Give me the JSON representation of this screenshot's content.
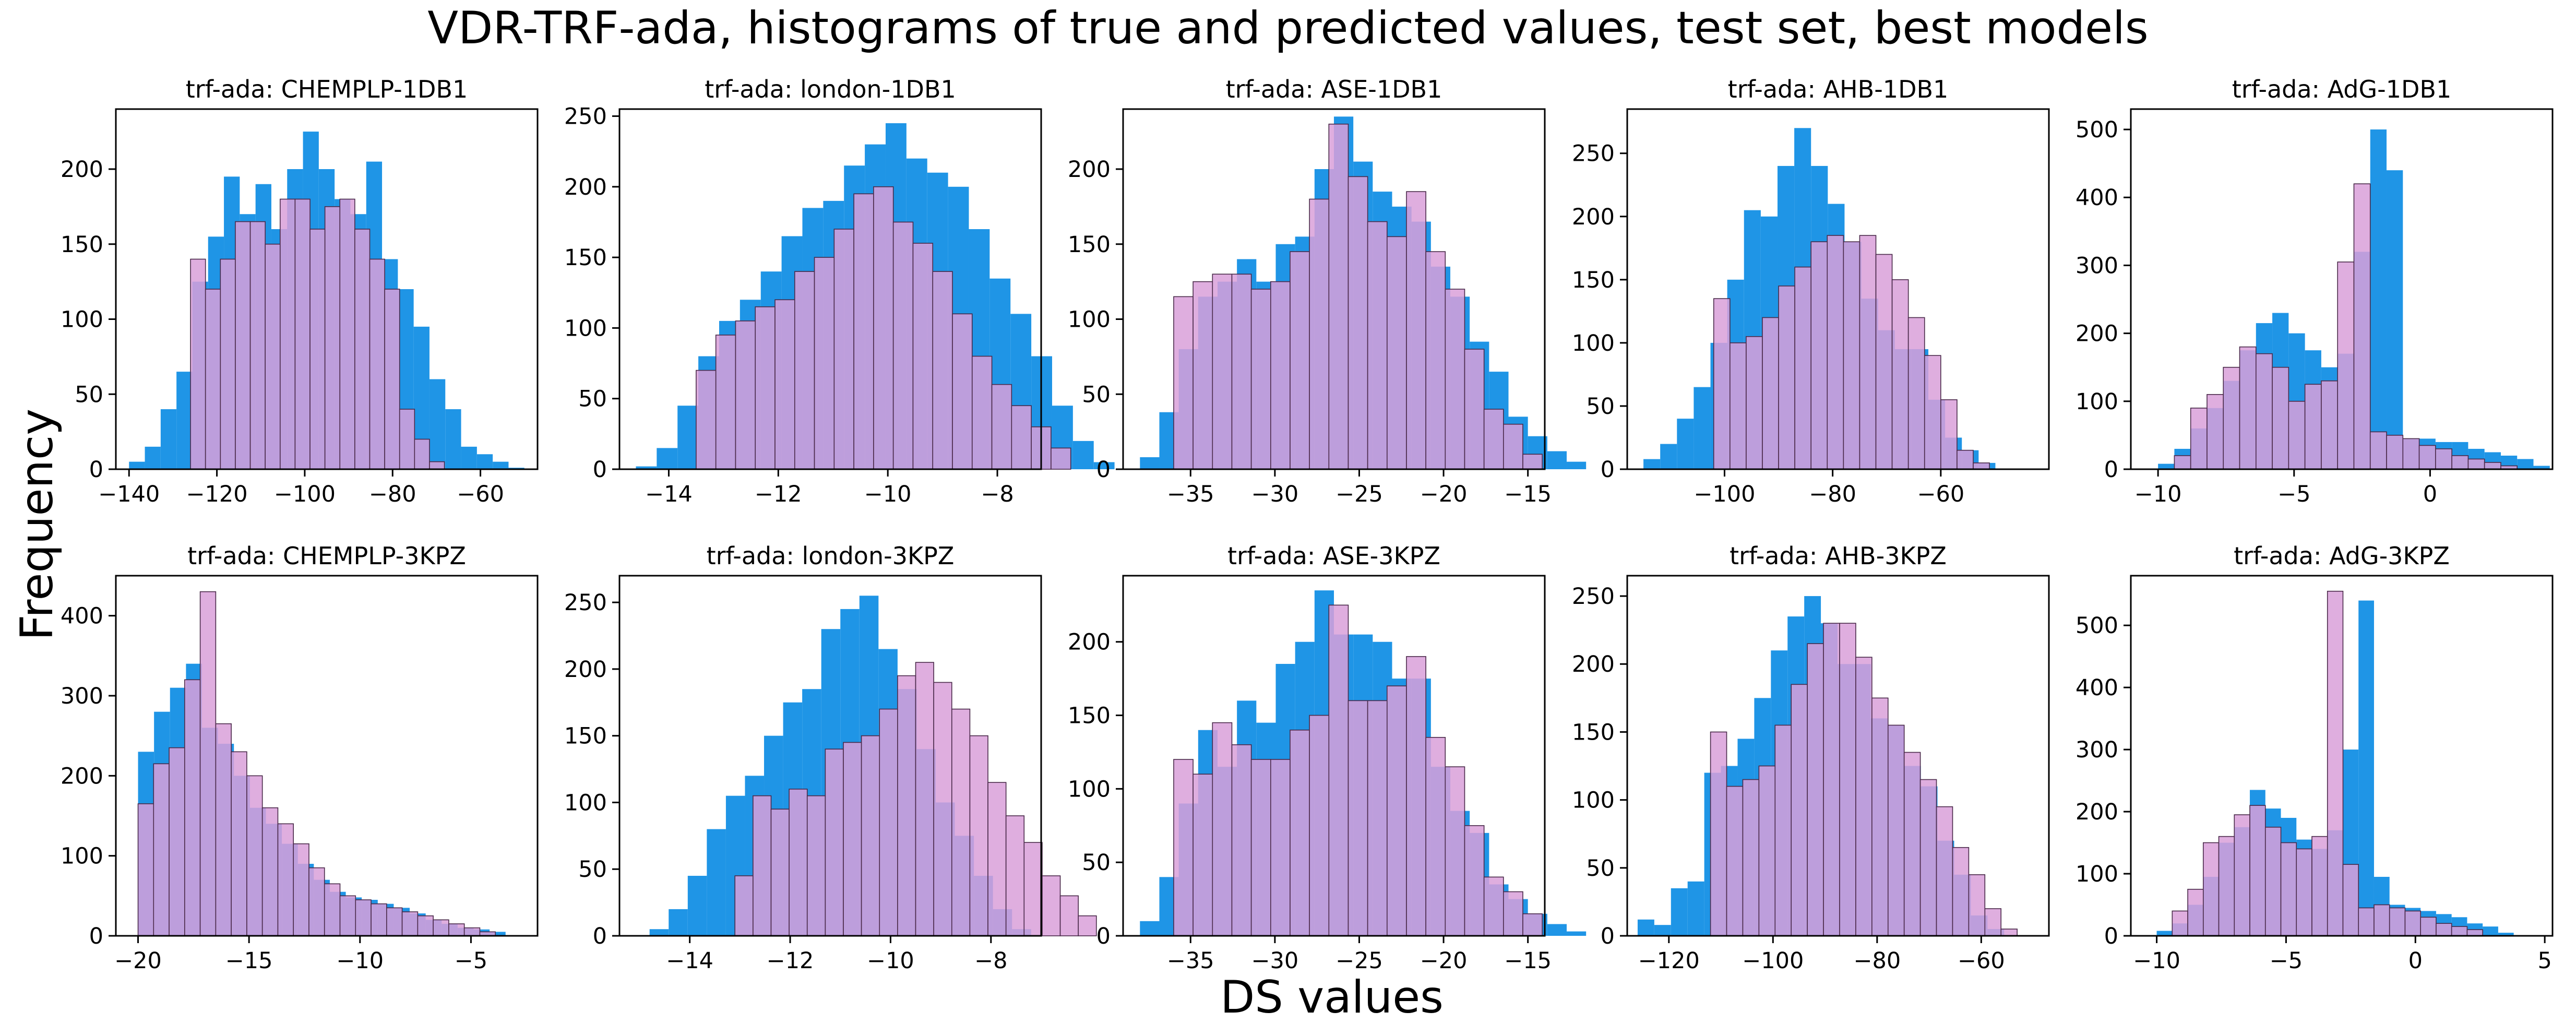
{
  "title": "VDR-TRF-ada, histograms of true and predicted values, test set, best models",
  "ylabel": "Frequency",
  "xlabel": "DS values",
  "colors": {
    "true": "#1f95e6",
    "pred": "#d9a0d9",
    "pred_edge": "#4a2a4a"
  },
  "chart_data": [
    {
      "type": "bar",
      "title": "trf-ada: CHEMPLP-1DB1",
      "xlim": [
        -143,
        -47
      ],
      "ylim": [
        0,
        240
      ],
      "xticks": [
        -140,
        -120,
        -100,
        -80,
        -60
      ],
      "yticks": [
        0,
        50,
        100,
        150,
        200
      ],
      "series": [
        {
          "x0": -140,
          "width": 3.6,
          "values": [
            5,
            15,
            40,
            65,
            125,
            155,
            195,
            170,
            190,
            160,
            200,
            225,
            200,
            180,
            170,
            205,
            140,
            120,
            95,
            60,
            40,
            15,
            10,
            5,
            1
          ]
        },
        {
          "x0": -126,
          "width": 3.4,
          "values": [
            140,
            120,
            140,
            165,
            165,
            150,
            180,
            180,
            160,
            175,
            180,
            160,
            140,
            120,
            40,
            20,
            5
          ]
        }
      ]
    },
    {
      "type": "bar",
      "title": "trf-ada: london-1DB1",
      "xlim": [
        -14.9,
        -7.2
      ],
      "ylim": [
        0,
        255
      ],
      "xticks": [
        -14,
        -12,
        -10,
        -8
      ],
      "yticks": [
        0,
        50,
        100,
        150,
        200,
        250
      ],
      "series": [
        {
          "x0": -14.6,
          "width": 0.38,
          "values": [
            2,
            15,
            45,
            80,
            105,
            120,
            140,
            165,
            185,
            190,
            215,
            230,
            245,
            220,
            210,
            200,
            170,
            135,
            110,
            80,
            45,
            20,
            5
          ]
        },
        {
          "x0": -13.5,
          "width": 0.36,
          "values": [
            70,
            95,
            105,
            115,
            120,
            140,
            150,
            170,
            195,
            200,
            175,
            160,
            140,
            110,
            80,
            60,
            45,
            30,
            15
          ]
        }
      ]
    },
    {
      "type": "bar",
      "title": "trf-ada: ASE-1DB1",
      "xlim": [
        -39,
        -14
      ],
      "ylim": [
        0,
        240
      ],
      "xticks": [
        -35,
        -30,
        -25,
        -20,
        -15
      ],
      "yticks": [
        0,
        50,
        100,
        150,
        200
      ],
      "series": [
        {
          "x0": -38,
          "width": 1.15,
          "values": [
            8,
            38,
            80,
            115,
            125,
            140,
            125,
            150,
            155,
            200,
            235,
            205,
            185,
            175,
            165,
            135,
            115,
            85,
            65,
            35,
            22,
            12,
            5
          ]
        },
        {
          "x0": -36,
          "width": 1.15,
          "values": [
            115,
            125,
            130,
            130,
            120,
            125,
            145,
            180,
            230,
            195,
            165,
            155,
            185,
            145,
            120,
            80,
            40,
            30,
            10
          ]
        }
      ]
    },
    {
      "type": "bar",
      "title": "trf-ada: AHB-1DB1",
      "xlim": [
        -118,
        -40
      ],
      "ylim": [
        0,
        285
      ],
      "xticks": [
        -100,
        -80,
        -60
      ],
      "yticks": [
        0,
        50,
        100,
        150,
        200,
        250
      ],
      "series": [
        {
          "x0": -115,
          "width": 3.1,
          "values": [
            8,
            20,
            40,
            65,
            100,
            150,
            205,
            200,
            240,
            270,
            240,
            210,
            180,
            135,
            110,
            95,
            95,
            55,
            25,
            15,
            5
          ]
        },
        {
          "x0": -102,
          "width": 3.0,
          "values": [
            135,
            100,
            105,
            120,
            145,
            160,
            180,
            185,
            180,
            185,
            170,
            150,
            120,
            90,
            55,
            15,
            5
          ]
        }
      ]
    },
    {
      "type": "bar",
      "title": "trf-ada: AdG-1DB1",
      "xlim": [
        -11,
        4.5
      ],
      "ylim": [
        0,
        530
      ],
      "xticks": [
        -10,
        -5,
        0
      ],
      "yticks": [
        0,
        100,
        200,
        300,
        400,
        500
      ],
      "series": [
        {
          "x0": -10,
          "width": 0.6,
          "values": [
            8,
            30,
            60,
            90,
            130,
            175,
            215,
            230,
            200,
            175,
            150,
            170,
            320,
            500,
            440,
            45,
            45,
            40,
            40,
            30,
            25,
            20,
            15,
            5
          ]
        },
        {
          "x0": -9.4,
          "width": 0.6,
          "values": [
            20,
            90,
            110,
            150,
            180,
            170,
            150,
            100,
            125,
            130,
            305,
            420,
            55,
            50,
            45,
            35,
            30,
            20,
            15,
            10,
            5
          ]
        }
      ]
    },
    {
      "type": "bar",
      "title": "trf-ada: CHEMPLP-3KPZ",
      "xlim": [
        -21,
        -2
      ],
      "ylim": [
        0,
        450
      ],
      "xticks": [
        -20,
        -15,
        -10,
        -5
      ],
      "yticks": [
        0,
        100,
        200,
        300,
        400
      ],
      "series": [
        {
          "x0": -20,
          "width": 0.72,
          "values": [
            230,
            280,
            310,
            340,
            260,
            240,
            200,
            160,
            140,
            115,
            90,
            70,
            55,
            48,
            45,
            40,
            35,
            28,
            20,
            15,
            10,
            8,
            5
          ]
        },
        {
          "x0": -20,
          "width": 0.7,
          "values": [
            165,
            215,
            235,
            320,
            430,
            265,
            230,
            200,
            160,
            140,
            115,
            85,
            65,
            50,
            45,
            40,
            35,
            30,
            25,
            20,
            15,
            10,
            5
          ]
        }
      ]
    },
    {
      "type": "bar",
      "title": "trf-ada: london-3KPZ",
      "xlim": [
        -15.4,
        -7
      ],
      "ylim": [
        0,
        270
      ],
      "xticks": [
        -14,
        -12,
        -10,
        -8
      ],
      "yticks": [
        0,
        50,
        100,
        150,
        200,
        250
      ],
      "series": [
        {
          "x0": -14.8,
          "width": 0.38,
          "values": [
            5,
            20,
            45,
            80,
            105,
            120,
            150,
            175,
            185,
            230,
            245,
            255,
            215,
            185,
            140,
            100,
            75,
            45,
            20,
            5
          ]
        },
        {
          "x0": -13.1,
          "width": 0.36,
          "values": [
            45,
            105,
            95,
            110,
            105,
            140,
            145,
            150,
            170,
            195,
            205,
            190,
            170,
            150,
            115,
            90,
            70,
            45,
            30,
            15
          ]
        }
      ]
    },
    {
      "type": "bar",
      "title": "trf-ada: ASE-3KPZ",
      "xlim": [
        -39,
        -14
      ],
      "ylim": [
        0,
        245
      ],
      "xticks": [
        -35,
        -30,
        -25,
        -20,
        -15
      ],
      "yticks": [
        0,
        50,
        100,
        150,
        200
      ],
      "series": [
        {
          "x0": -38,
          "width": 1.15,
          "values": [
            10,
            40,
            90,
            140,
            115,
            160,
            145,
            185,
            200,
            235,
            205,
            205,
            200,
            175,
            175,
            115,
            85,
            70,
            35,
            25,
            15,
            8,
            3
          ]
        },
        {
          "x0": -36,
          "width": 1.15,
          "values": [
            120,
            110,
            145,
            130,
            120,
            120,
            140,
            150,
            225,
            160,
            160,
            170,
            190,
            135,
            115,
            75,
            40,
            30,
            15
          ]
        }
      ]
    },
    {
      "type": "bar",
      "title": "trf-ada: AHB-3KPZ",
      "xlim": [
        -128,
        -47
      ],
      "ylim": [
        0,
        265
      ],
      "xticks": [
        -120,
        -100,
        -80,
        -60
      ],
      "yticks": [
        0,
        50,
        100,
        150,
        200,
        250
      ],
      "series": [
        {
          "x0": -126,
          "width": 3.2,
          "values": [
            12,
            8,
            35,
            40,
            120,
            125,
            145,
            175,
            210,
            235,
            250,
            230,
            200,
            200,
            160,
            155,
            125,
            110,
            70,
            45,
            15,
            5
          ]
        },
        {
          "x0": -112,
          "width": 3.1,
          "values": [
            150,
            110,
            115,
            125,
            155,
            185,
            215,
            230,
            230,
            205,
            175,
            155,
            135,
            115,
            95,
            65,
            45,
            20,
            5
          ]
        }
      ]
    },
    {
      "type": "bar",
      "title": "trf-ada: AdG-3KPZ",
      "xlim": [
        -11,
        5.3
      ],
      "ylim": [
        0,
        580
      ],
      "xticks": [
        -10,
        -5,
        0,
        5
      ],
      "yticks": [
        0,
        100,
        200,
        300,
        400,
        500
      ],
      "series": [
        {
          "x0": -10,
          "width": 0.6,
          "values": [
            8,
            20,
            50,
            95,
            150,
            175,
            235,
            205,
            190,
            155,
            140,
            170,
            300,
            540,
            95,
            50,
            45,
            40,
            35,
            30,
            20,
            15,
            5
          ]
        },
        {
          "x0": -9.4,
          "width": 0.6,
          "values": [
            40,
            75,
            150,
            160,
            195,
            210,
            175,
            150,
            140,
            160,
            555,
            115,
            45,
            50,
            45,
            40,
            30,
            20,
            15,
            10
          ]
        }
      ]
    }
  ]
}
